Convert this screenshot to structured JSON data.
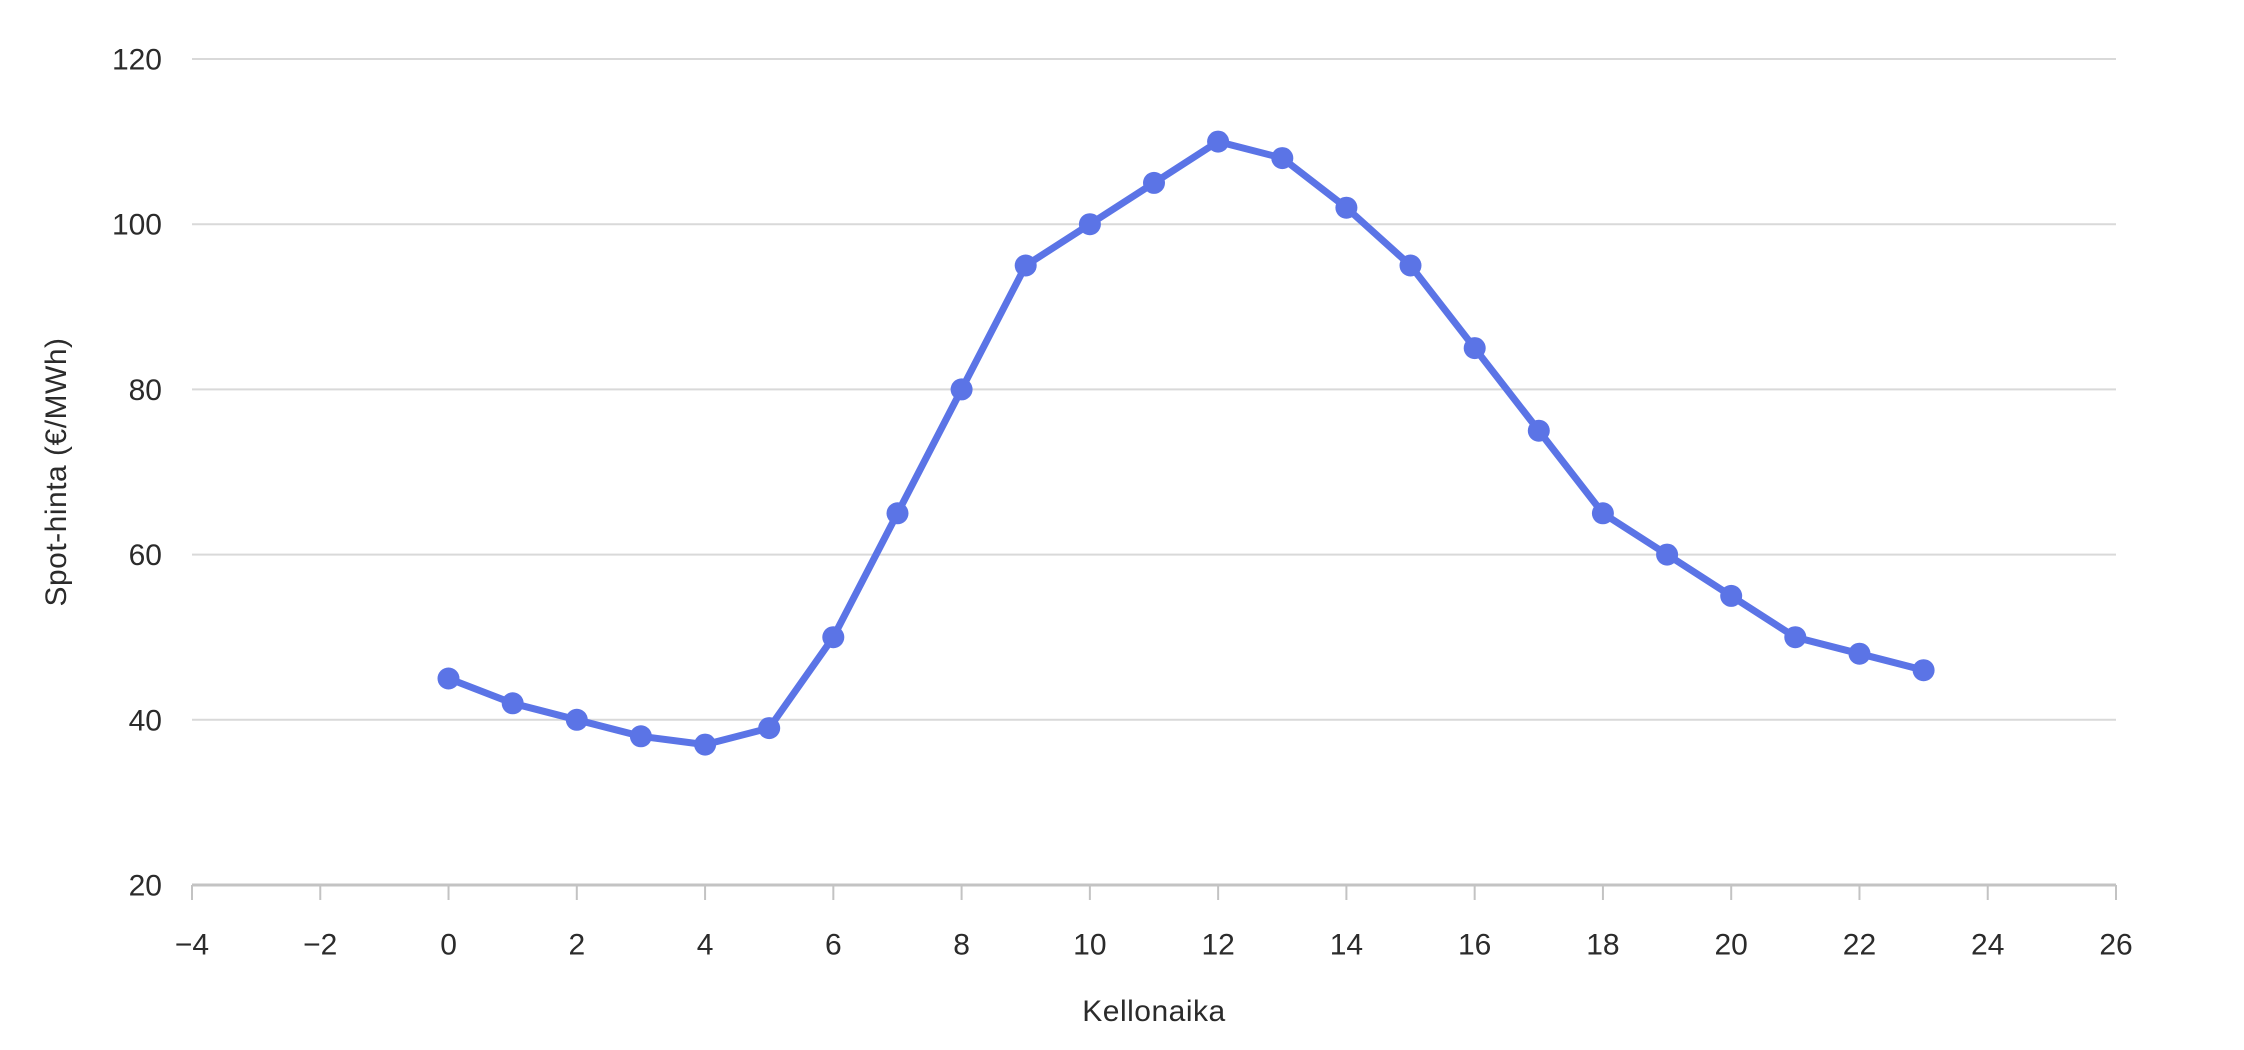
{
  "chart_data": {
    "type": "line",
    "title": "",
    "xlabel": "Kellonaika",
    "ylabel": "Spot-hinta (€/MWh)",
    "x": [
      0,
      1,
      2,
      3,
      4,
      5,
      6,
      7,
      8,
      9,
      10,
      11,
      12,
      13,
      14,
      15,
      16,
      17,
      18,
      19,
      20,
      21,
      22,
      23
    ],
    "series": [
      {
        "name": "Spot-hinta",
        "values": [
          45,
          42,
          40,
          38,
          37,
          39,
          50,
          65,
          80,
          95,
          100,
          105,
          110,
          108,
          102,
          95,
          85,
          75,
          65,
          60,
          55,
          50,
          48,
          46
        ]
      }
    ],
    "xlim": [
      -4,
      26
    ],
    "ylim": [
      20,
      120
    ],
    "xticks": [
      -4,
      -2,
      0,
      2,
      4,
      6,
      8,
      10,
      12,
      14,
      16,
      18,
      20,
      22,
      24,
      26
    ],
    "yticks": [
      20,
      40,
      60,
      80,
      100,
      120
    ],
    "grid": "horizontal",
    "legend": "none",
    "colors": {
      "line": "#5B74E6",
      "marker": "#5B74E6",
      "grid": "#d9d9d9",
      "axis": "#c3c3c3",
      "tick": "#c3c3c3",
      "text": "#2b2b2b"
    }
  }
}
